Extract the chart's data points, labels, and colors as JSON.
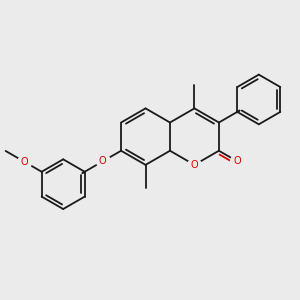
{
  "bg_color": "#ebebeb",
  "bond_color": "#1a1a1a",
  "o_color": "#dd0000",
  "lw": 1.3,
  "figsize": [
    3.0,
    3.0
  ],
  "dpi": 100,
  "xlim": [
    0,
    10
  ],
  "ylim": [
    0,
    10
  ]
}
